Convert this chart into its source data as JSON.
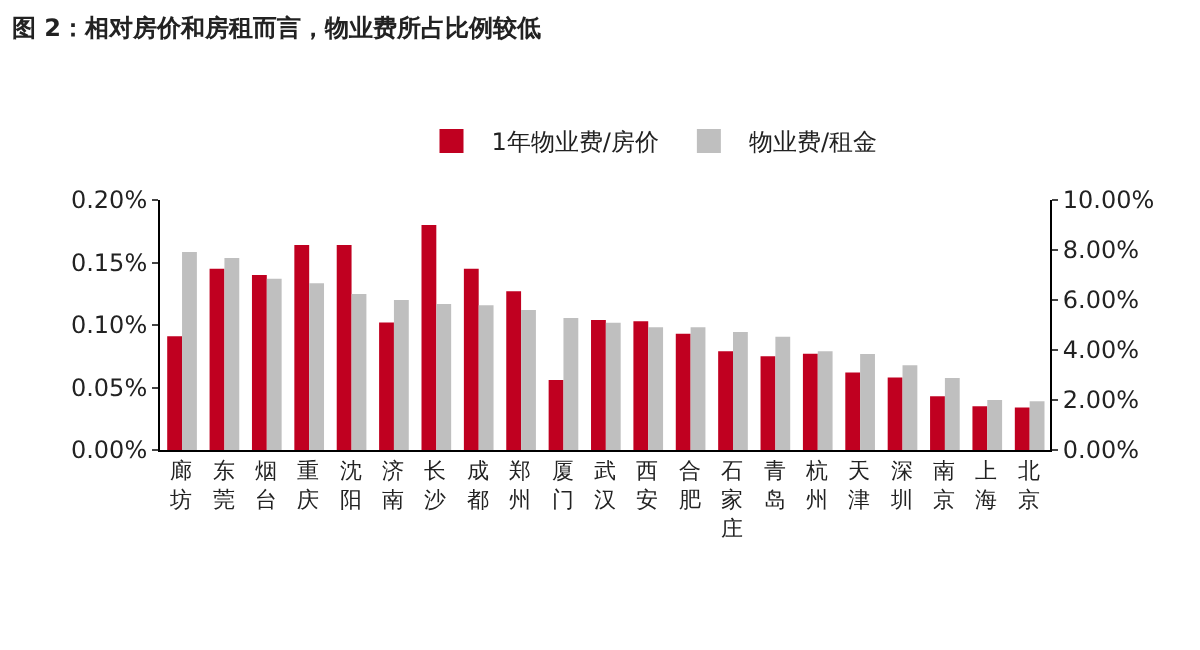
{
  "chart_data": {
    "type": "bar",
    "title": "图 2：相对房价和房租而言，物业费所占比例较低",
    "categories": [
      "廊坊",
      "东莞",
      "烟台",
      "重庆",
      "沈阳",
      "济南",
      "长沙",
      "成都",
      "郑州",
      "厦门",
      "武汉",
      "西安",
      "合肥",
      "石家庄",
      "青岛",
      "杭州",
      "天津",
      "深圳",
      "南京",
      "上海",
      "北京"
    ],
    "series": [
      {
        "name": "1年物业费/房价",
        "color": "#c00020",
        "values": [
          0.091,
          0.145,
          0.14,
          0.164,
          0.164,
          0.102,
          0.18,
          0.145,
          0.127,
          0.056,
          0.104,
          0.103,
          0.093,
          0.079,
          0.075,
          0.077,
          0.062,
          0.058,
          0.043,
          0.035,
          0.034
        ]
      },
      {
        "name": "物业费/租金",
        "color": "#bfbfbf",
        "axis": "y2",
        "values": [
          7.92,
          7.68,
          6.85,
          6.67,
          6.24,
          6.0,
          5.84,
          5.79,
          5.6,
          5.28,
          5.09,
          4.91,
          4.91,
          4.72,
          4.53,
          3.95,
          3.84,
          3.39,
          2.88,
          2.0,
          1.95
        ]
      }
    ],
    "ylim": [
      0,
      0.2
    ],
    "yticks": [
      {
        "value": 0,
        "label": "0.00%"
      },
      {
        "value": 0.05,
        "label": "0.05%"
      },
      {
        "value": 0.1,
        "label": "0.10%"
      },
      {
        "value": 0.15,
        "label": "0.15%"
      },
      {
        "value": 0.2,
        "label": "0.20%"
      }
    ],
    "y2lim": [
      0,
      10
    ],
    "y2ticks": [
      {
        "value": 0,
        "label": "0.00%"
      },
      {
        "value": 2,
        "label": "2.00%"
      },
      {
        "value": 4,
        "label": "4.00%"
      },
      {
        "value": 6,
        "label": "6.00%"
      },
      {
        "value": 8,
        "label": "8.00%"
      },
      {
        "value": 10,
        "label": "10.00%"
      }
    ],
    "grid": false,
    "legend": "top"
  }
}
